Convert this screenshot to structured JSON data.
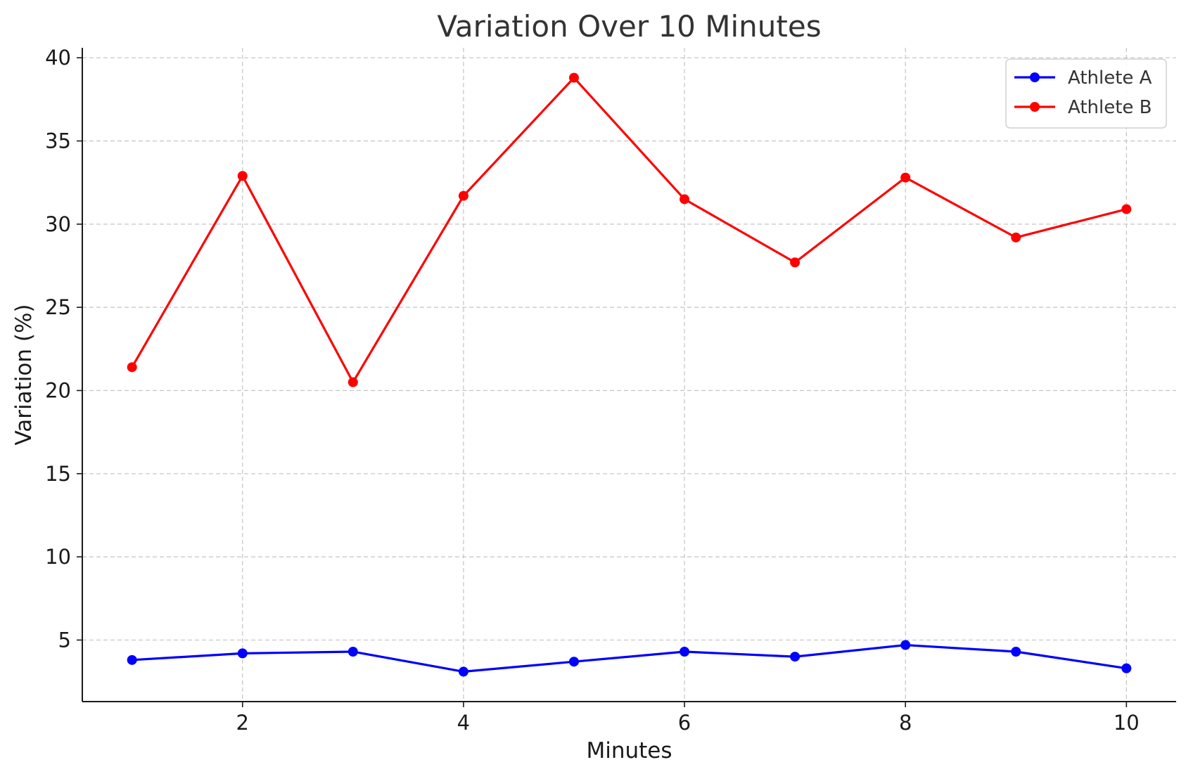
{
  "chart_data": {
    "type": "line",
    "title": "Variation Over 10 Minutes",
    "xlabel": "Minutes",
    "ylabel": "Variation (%)",
    "x": [
      1,
      2,
      3,
      4,
      5,
      6,
      7,
      8,
      9,
      10
    ],
    "xlim": [
      0.55,
      10.45
    ],
    "ylim": [
      1.3,
      40.6
    ],
    "xticks": [
      2,
      4,
      6,
      8,
      10
    ],
    "yticks": [
      5,
      10,
      15,
      20,
      25,
      30,
      35,
      40
    ],
    "grid": true,
    "legend_position": "top-right",
    "series": [
      {
        "name": "Athlete A",
        "color": "#0000ff",
        "marker": "circle",
        "values": [
          3.8,
          4.2,
          4.3,
          3.1,
          3.7,
          4.3,
          4.0,
          4.7,
          4.3,
          3.3
        ]
      },
      {
        "name": "Athlete B",
        "color": "#ff0000",
        "marker": "circle",
        "values": [
          21.4,
          32.9,
          20.5,
          31.7,
          38.8,
          31.5,
          27.7,
          32.8,
          29.2,
          30.9
        ]
      }
    ]
  }
}
